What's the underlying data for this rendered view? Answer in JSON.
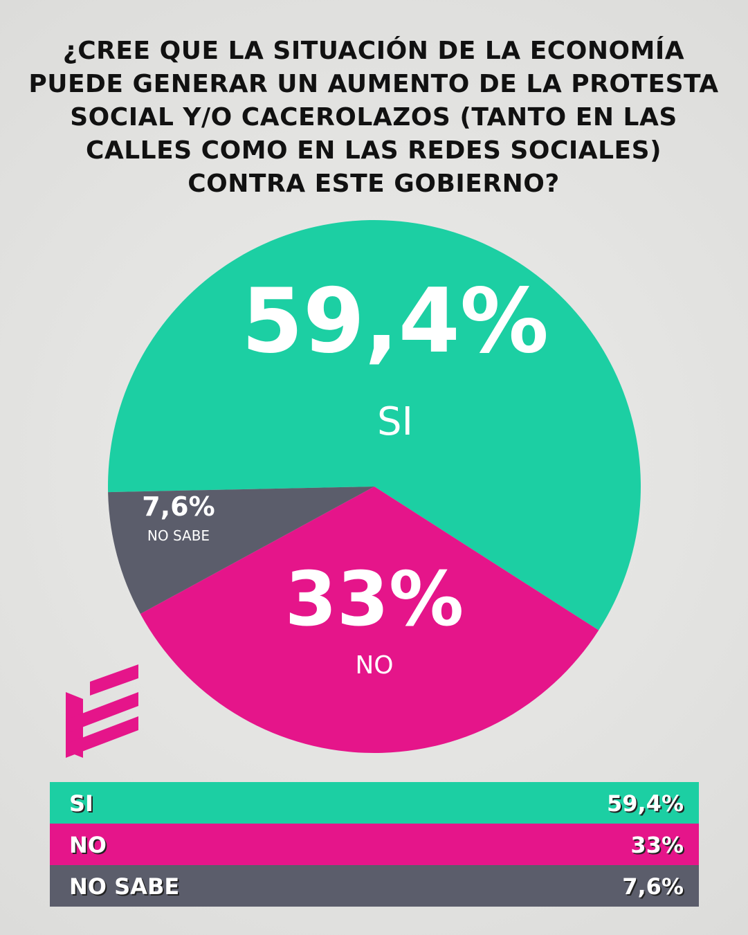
{
  "chart_data": {
    "type": "pie",
    "title": "¿CREE QUE LA SITUACIÓN DE LA ECONOMÍA PUEDE GENERAR UN AUMENTO DE LA PROTESTA SOCIAL Y/O CACEROLAZOS (TANTO EN LAS CALLES COMO EN LAS REDES SOCIALES) CONTRA ESTE GOBIERNO?",
    "categories": [
      "SI",
      "NO",
      "NO SABE"
    ],
    "values": [
      59.4,
      33,
      7.6
    ],
    "value_labels": [
      "59,4%",
      "33%",
      "7,6%"
    ],
    "colors": [
      "#1ccfa3",
      "#e5158a",
      "#5b5d6b"
    ]
  }
}
